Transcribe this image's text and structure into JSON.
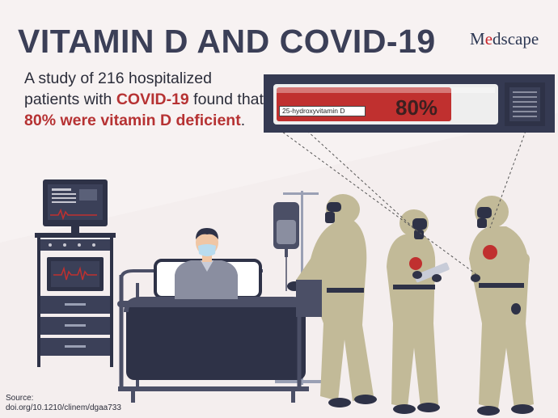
{
  "header": {
    "title": "VITAMIN D AND COVID-19",
    "logo": {
      "part1": "M",
      "accent": "e",
      "part2": "dscape"
    }
  },
  "lede": {
    "part1": "A study of 216 hospitalized patients with ",
    "highlight1": "COVID-19",
    "part2": " found that ",
    "highlight2": "80% were",
    "part3": " ",
    "highlight3": "vitamin D deficient",
    "part4": "."
  },
  "test_tube": {
    "label": "25-hydroxyvitamin D",
    "percent_text": "80%",
    "fill_fraction": 0.8
  },
  "source": {
    "label": "Source:",
    "doi": "doi.org/10.1210/clinem/dgaa733"
  },
  "colors": {
    "title": "#3b3f57",
    "highlight": "#b63233",
    "background": "#f4eeee",
    "hazmat_suit": "#c2ba98",
    "navy": "#2e3247",
    "red_fill": "#c0302f"
  },
  "icons": [
    "monitor-cart-icon",
    "hospital-bed-icon",
    "patient-icon",
    "iv-stand-icon",
    "hazmat-worker-icon",
    "clipboard-icon",
    "test-tube-icon"
  ]
}
